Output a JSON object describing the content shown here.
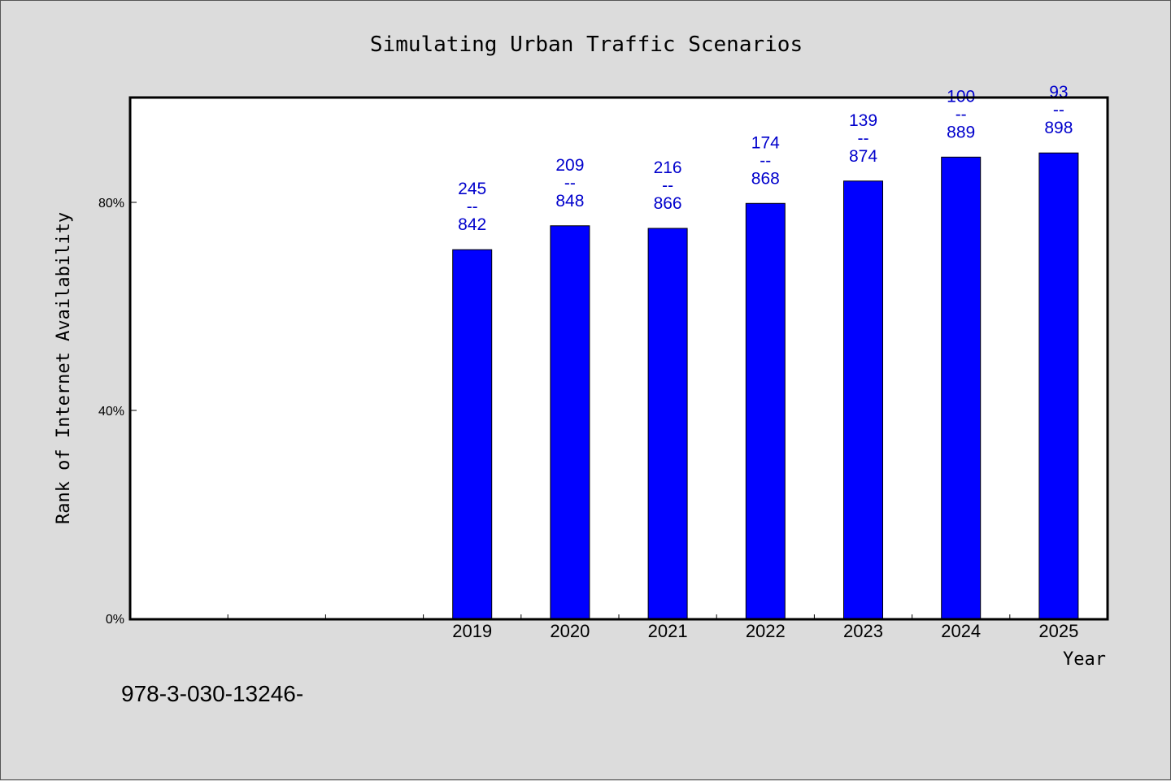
{
  "chart_data": {
    "type": "bar",
    "title": "Simulating Urban Traffic Scenarios",
    "xlabel": "Year",
    "ylabel": "Rank of Internet Availability",
    "categories": [
      "2019",
      "2020",
      "2021",
      "2022",
      "2023",
      "2024",
      "2025"
    ],
    "values": [
      70.9,
      75.5,
      75.0,
      79.8,
      84.1,
      88.7,
      89.5
    ],
    "data_labels": [
      {
        "top": "245",
        "sep": "--",
        "bottom": "842"
      },
      {
        "top": "209",
        "sep": "--",
        "bottom": "848"
      },
      {
        "top": "216",
        "sep": "--",
        "bottom": "866"
      },
      {
        "top": "174",
        "sep": "--",
        "bottom": "868"
      },
      {
        "top": "139",
        "sep": "--",
        "bottom": "874"
      },
      {
        "top": "100",
        "sep": "--",
        "bottom": "889"
      },
      {
        "top": "93",
        "sep": "--",
        "bottom": "898"
      }
    ],
    "yticks": [
      {
        "value": 0,
        "label": "0%"
      },
      {
        "value": 40,
        "label": "40%"
      },
      {
        "value": 80,
        "label": "80%"
      }
    ],
    "ylim": [
      0,
      100
    ],
    "x_slots": 10,
    "first_category_slot": 3,
    "grid": false,
    "legend": "none",
    "bar_color": "#0000ff",
    "label_color": "#0000cc"
  },
  "footer_text": "978-3-030-13246-"
}
